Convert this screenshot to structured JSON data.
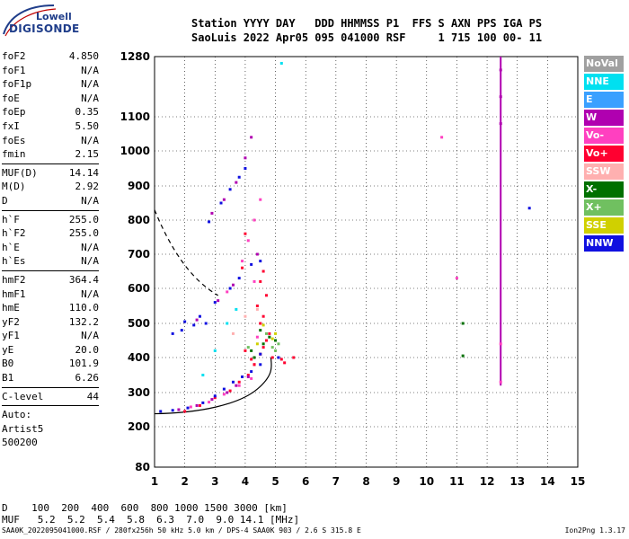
{
  "logo": {
    "brand": "Lowell",
    "product": "DIGISONDE"
  },
  "header": {
    "line1": "Station YYYY DAY   DDD HHMMSS P1  FFS S AXN PPS IGA PS",
    "line2": "SaoLuis 2022 Apr05 095 041000 RSF     1 715 100 00- 11"
  },
  "params": [
    {
      "group": [
        [
          "foF2",
          "4.850"
        ],
        [
          "foF1",
          "N/A"
        ],
        [
          "foF1p",
          "N/A"
        ],
        [
          "foE",
          "N/A"
        ],
        [
          "foEp",
          "0.35"
        ],
        [
          "fxI",
          "5.50"
        ],
        [
          "foEs",
          "N/A"
        ],
        [
          "fmin",
          "2.15"
        ]
      ]
    },
    {
      "group": [
        [
          "MUF(D)",
          "14.14"
        ],
        [
          "M(D)",
          "2.92"
        ],
        [
          "D",
          "N/A"
        ]
      ]
    },
    {
      "group": [
        [
          "h`F",
          "255.0"
        ],
        [
          "h`F2",
          "255.0"
        ],
        [
          "h`E",
          "N/A"
        ],
        [
          "h`Es",
          "N/A"
        ]
      ]
    },
    {
      "group": [
        [
          "hmF2",
          "364.4"
        ],
        [
          "hmF1",
          "N/A"
        ],
        [
          "hmE",
          "110.0"
        ],
        [
          "yF2",
          "132.2"
        ],
        [
          "yF1",
          "N/A"
        ],
        [
          "yE",
          "20.0"
        ],
        [
          "B0",
          "101.9"
        ],
        [
          "B1",
          "6.26"
        ]
      ]
    },
    {
      "group": [
        [
          "C-level",
          "44"
        ]
      ]
    }
  ],
  "auto_lines": [
    "Auto:",
    "Artist5",
    "500200"
  ],
  "legend": [
    {
      "label": "NoVal",
      "color": "#a0a0a0"
    },
    {
      "label": "NNE",
      "color": "#00e0f0"
    },
    {
      "label": "E",
      "color": "#3aa0ff"
    },
    {
      "label": "W",
      "color": "#b000b0"
    },
    {
      "label": "Vo-",
      "color": "#ff40c0"
    },
    {
      "label": "Vo+",
      "color": "#ff0030"
    },
    {
      "label": "SSW",
      "color": "#ffb0b0"
    },
    {
      "label": "X-",
      "color": "#007000"
    },
    {
      "label": "X+",
      "color": "#70c060"
    },
    {
      "label": "SSE",
      "color": "#d0d000"
    },
    {
      "label": "NNW",
      "color": "#1010e0"
    }
  ],
  "bottom": {
    "line1": "D    100  200  400  600  800 1000 1500 3000 [km]",
    "line2": "MUF   5.2  5.2  5.4  5.8  6.3  7.0  9.0 14.1 [MHz]"
  },
  "footer": "SAA0K_2022095041000.RSF / 280fx256h 50 kHz 5.0 km / DPS-4 SAA0K 903 / 2.6 S 315.8 E",
  "footer_right": "Ion2Png 1.3.17",
  "chart_data": {
    "type": "scatter",
    "x_ticks": [
      1,
      2,
      3,
      4,
      5,
      6,
      7,
      8,
      9,
      10,
      11,
      12,
      13,
      14,
      15
    ],
    "y_ticks": [
      80,
      200,
      300,
      400,
      500,
      600,
      700,
      800,
      900,
      1000,
      1100,
      1280
    ],
    "xlim": [
      1,
      15
    ],
    "ylim": [
      80,
      1280
    ],
    "grid": true,
    "series": [
      {
        "color": "#ff0030",
        "points": [
          [
            2.0,
            245
          ],
          [
            2.5,
            262
          ],
          [
            3.0,
            285
          ],
          [
            3.5,
            305
          ],
          [
            3.8,
            330
          ],
          [
            4.1,
            350
          ],
          [
            4.3,
            380
          ],
          [
            4.5,
            410
          ],
          [
            4.6,
            430
          ],
          [
            4.7,
            450
          ],
          [
            4.8,
            470
          ],
          [
            4.5,
            500
          ],
          [
            4.6,
            520
          ],
          [
            4.4,
            550
          ],
          [
            4.7,
            580
          ],
          [
            4.5,
            620
          ],
          [
            4.6,
            650
          ],
          [
            3.9,
            660
          ],
          [
            4.0,
            760
          ],
          [
            4.3,
            380
          ],
          [
            4.2,
            395
          ],
          [
            5.2,
            395
          ],
          [
            5.6,
            400
          ],
          [
            5.3,
            385
          ],
          [
            4.9,
            400
          ],
          [
            4.0,
            420
          ]
        ]
      },
      {
        "color": "#1010e0",
        "points": [
          [
            1.2,
            245
          ],
          [
            1.6,
            248
          ],
          [
            2.1,
            255
          ],
          [
            2.6,
            270
          ],
          [
            3.0,
            290
          ],
          [
            3.3,
            310
          ],
          [
            3.6,
            330
          ],
          [
            3.9,
            345
          ],
          [
            4.2,
            360
          ],
          [
            4.5,
            380
          ],
          [
            2.0,
            505
          ],
          [
            2.5,
            520
          ],
          [
            3.0,
            560
          ],
          [
            3.5,
            600
          ],
          [
            3.8,
            630
          ],
          [
            4.2,
            670
          ],
          [
            4.5,
            680
          ],
          [
            2.8,
            795
          ],
          [
            3.2,
            850
          ],
          [
            3.5,
            890
          ],
          [
            3.8,
            925
          ],
          [
            4.0,
            950
          ],
          [
            4.5,
            410
          ],
          [
            5.1,
            400
          ],
          [
            13.4,
            835
          ],
          [
            1.6,
            470
          ],
          [
            1.9,
            480
          ],
          [
            2.3,
            495
          ],
          [
            2.7,
            500
          ]
        ]
      },
      {
        "color": "#b000b0",
        "points": [
          [
            1.8,
            250
          ],
          [
            2.4,
            262
          ],
          [
            2.9,
            280
          ],
          [
            3.4,
            300
          ],
          [
            3.7,
            320
          ],
          [
            4.1,
            345
          ],
          [
            2.4,
            510
          ],
          [
            3.1,
            565
          ],
          [
            3.6,
            610
          ],
          [
            2.9,
            820
          ],
          [
            3.3,
            860
          ],
          [
            3.7,
            910
          ],
          [
            4.0,
            980
          ],
          [
            4.2,
            1040
          ],
          [
            4.4,
            700
          ],
          [
            12.45,
            1240
          ],
          [
            12.45,
            1160
          ],
          [
            12.45,
            1080
          ]
        ]
      },
      {
        "color": "#ff40c0",
        "points": [
          [
            2.2,
            258
          ],
          [
            2.8,
            272
          ],
          [
            3.3,
            295
          ],
          [
            3.8,
            320
          ],
          [
            4.2,
            340
          ],
          [
            4.4,
            460
          ],
          [
            4.3,
            620
          ],
          [
            3.4,
            590
          ],
          [
            3.9,
            680
          ],
          [
            4.1,
            740
          ],
          [
            4.3,
            800
          ],
          [
            4.5,
            860
          ],
          [
            10.5,
            1040
          ],
          [
            11.0,
            630
          ],
          [
            12.45,
            440
          ],
          [
            12.45,
            330
          ]
        ]
      },
      {
        "color": "#007000",
        "points": [
          [
            4.2,
            420
          ],
          [
            4.6,
            440
          ],
          [
            4.8,
            460
          ],
          [
            4.5,
            480
          ],
          [
            4.3,
            400
          ],
          [
            5.0,
            450
          ],
          [
            11.2,
            500
          ],
          [
            11.2,
            405
          ]
        ]
      },
      {
        "color": "#70c060",
        "points": [
          [
            4.1,
            430
          ],
          [
            4.7,
            470
          ],
          [
            4.9,
            430
          ],
          [
            5.1,
            440
          ],
          [
            5.0,
            420
          ]
        ]
      },
      {
        "color": "#d0d000",
        "points": [
          [
            4.4,
            440
          ],
          [
            4.9,
            455
          ],
          [
            5.0,
            470
          ],
          [
            4.6,
            495
          ]
        ]
      },
      {
        "color": "#00e0f0",
        "points": [
          [
            3.4,
            500
          ],
          [
            3.0,
            420
          ],
          [
            3.7,
            540
          ],
          [
            5.2,
            1260
          ],
          [
            2.6,
            350
          ]
        ]
      },
      {
        "color": "#ffb0b0",
        "points": [
          [
            3.6,
            470
          ],
          [
            4.0,
            520
          ],
          [
            4.4,
            540
          ]
        ]
      }
    ],
    "vertical_line": {
      "x": 12.45,
      "y": [
        320,
        1280
      ],
      "color": "#b000b0"
    }
  }
}
